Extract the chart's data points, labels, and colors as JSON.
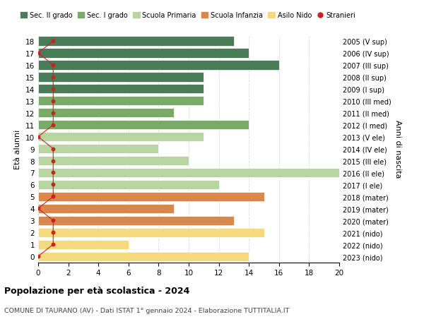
{
  "ages": [
    18,
    17,
    16,
    15,
    14,
    13,
    12,
    11,
    10,
    9,
    8,
    7,
    6,
    5,
    4,
    3,
    2,
    1,
    0
  ],
  "right_labels": [
    "2005 (V sup)",
    "2006 (IV sup)",
    "2007 (III sup)",
    "2008 (II sup)",
    "2009 (I sup)",
    "2010 (III med)",
    "2011 (II med)",
    "2012 (I med)",
    "2013 (V ele)",
    "2014 (IV ele)",
    "2015 (III ele)",
    "2016 (II ele)",
    "2017 (I ele)",
    "2018 (mater)",
    "2019 (mater)",
    "2020 (mater)",
    "2021 (nido)",
    "2022 (nido)",
    "2023 (nido)"
  ],
  "bar_values": [
    13,
    14,
    16,
    11,
    11,
    11,
    9,
    14,
    11,
    8,
    10,
    20,
    12,
    15,
    9,
    13,
    15,
    6,
    14
  ],
  "bar_colors": [
    "#4a7c59",
    "#4a7c59",
    "#4a7c59",
    "#4a7c59",
    "#4a7c59",
    "#7aaa68",
    "#7aaa68",
    "#7aaa68",
    "#b8d4a0",
    "#b8d4a0",
    "#b8d4a0",
    "#b8d4a0",
    "#b8d4a0",
    "#d9874a",
    "#d9874a",
    "#d9874a",
    "#f5d97e",
    "#f5d97e",
    "#f5d97e"
  ],
  "stranieri_x": [
    1,
    0,
    1,
    1,
    1,
    1,
    1,
    1,
    0,
    1,
    1,
    1,
    1,
    1,
    0,
    1,
    1,
    1,
    0
  ],
  "legend_labels": [
    "Sec. II grado",
    "Sec. I grado",
    "Scuola Primaria",
    "Scuola Infanzia",
    "Asilo Nido",
    "Stranieri"
  ],
  "legend_colors": [
    "#4a7c59",
    "#7aaa68",
    "#b8d4a0",
    "#d9874a",
    "#f5d97e",
    "#cc2222"
  ],
  "ylabel": "Età alunni",
  "right_ylabel": "Anni di nascita",
  "title": "Popolazione per età scolastica - 2024",
  "subtitle": "COMUNE DI TAURANO (AV) - Dati ISTAT 1° gennaio 2024 - Elaborazione TUTTITALIA.IT",
  "xlim": [
    0,
    20
  ],
  "xticks": [
    0,
    2,
    4,
    6,
    8,
    10,
    12,
    14,
    16,
    18,
    20
  ],
  "bg_color": "#ffffff",
  "bar_height": 0.78,
  "stranieri_color": "#cc2222",
  "grid_color": "#dddddd"
}
